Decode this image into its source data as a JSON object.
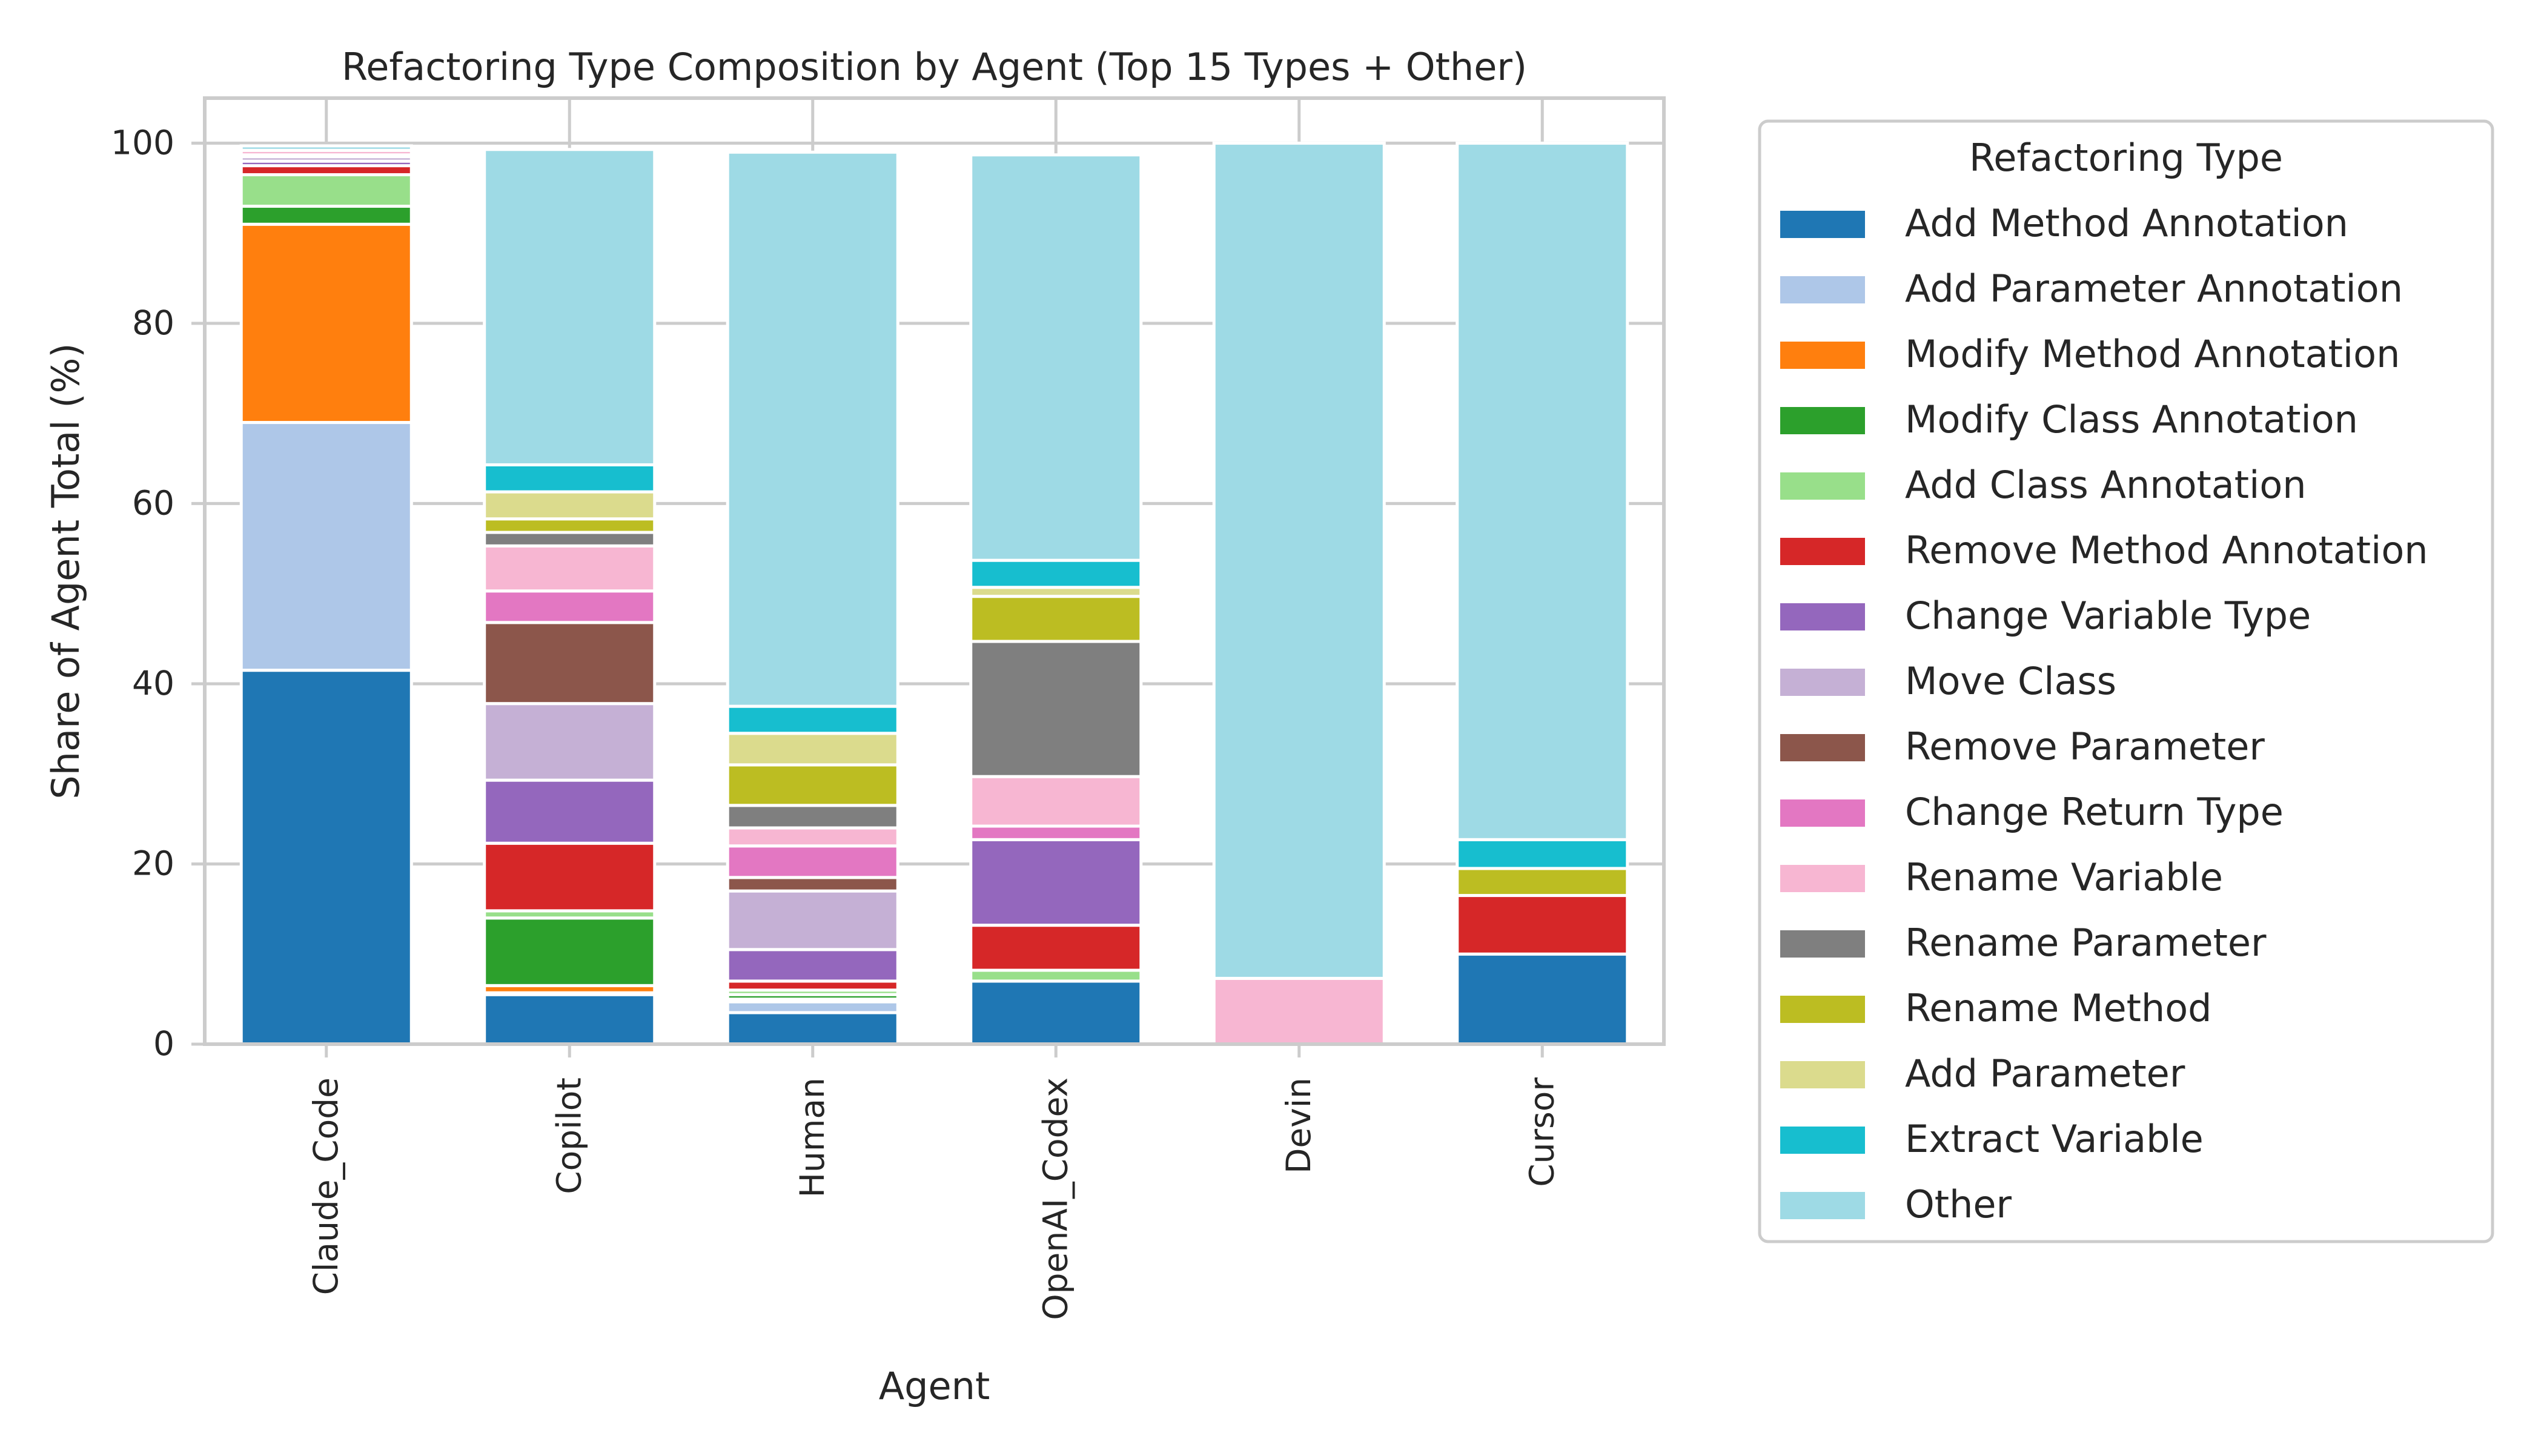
{
  "chart_data": {
    "type": "bar",
    "stacked": true,
    "title": "Refactoring Type Composition by Agent (Top 15 Types + Other)",
    "xlabel": "Agent",
    "ylabel": "Share of Agent Total (%)",
    "ylim": [
      0,
      105
    ],
    "yticks": [
      0,
      20,
      40,
      60,
      80,
      100
    ],
    "grid": true,
    "legend_title": "Refactoring Type",
    "legend_position": "right, outside",
    "categories": [
      "Claude_Code",
      "Copilot",
      "Human",
      "OpenAI_Codex",
      "Devin",
      "Cursor"
    ],
    "series": [
      {
        "name": "Add Method Annotation",
        "color": "#1f77b4",
        "values": [
          41.5,
          5.5,
          3.5,
          7.0,
          0,
          10.0
        ]
      },
      {
        "name": "Add Parameter Annotation",
        "color": "#aec7e8",
        "values": [
          27.5,
          0.2,
          1.2,
          0,
          0,
          0
        ]
      },
      {
        "name": "Modify Method Annotation",
        "color": "#ff7f0e",
        "values": [
          22.0,
          0.8,
          0.3,
          0,
          0,
          0
        ]
      },
      {
        "name": "Modify Class Annotation",
        "color": "#2ca02c",
        "values": [
          2.0,
          7.5,
          0.5,
          0,
          0,
          0
        ]
      },
      {
        "name": "Add Class Annotation",
        "color": "#98df8a",
        "values": [
          3.5,
          0.8,
          0.5,
          1.2,
          0,
          0
        ]
      },
      {
        "name": "Remove Method Annotation",
        "color": "#d62728",
        "values": [
          1.0,
          7.5,
          1.0,
          5.0,
          0,
          6.5
        ]
      },
      {
        "name": "Change Variable Type",
        "color": "#9467bd",
        "values": [
          0.5,
          7.0,
          3.5,
          9.5,
          0,
          0
        ]
      },
      {
        "name": "Move Class",
        "color": "#c5b0d5",
        "values": [
          0.5,
          8.5,
          6.5,
          0,
          0,
          0
        ]
      },
      {
        "name": "Remove Parameter",
        "color": "#8c564b",
        "values": [
          0,
          9.0,
          1.5,
          0,
          0,
          0
        ]
      },
      {
        "name": "Change Return Type",
        "color": "#e377c2",
        "values": [
          0.2,
          3.5,
          3.5,
          1.5,
          0,
          0
        ]
      },
      {
        "name": "Rename Variable",
        "color": "#f7b6d2",
        "values": [
          0.5,
          5.0,
          2.0,
          5.5,
          7.3,
          0
        ]
      },
      {
        "name": "Rename Parameter",
        "color": "#7f7f7f",
        "values": [
          0,
          1.5,
          2.5,
          15.0,
          0,
          0
        ]
      },
      {
        "name": "Rename Method",
        "color": "#bcbd22",
        "values": [
          0,
          1.5,
          4.5,
          5.0,
          0,
          3.0
        ]
      },
      {
        "name": "Add Parameter",
        "color": "#dbdb8d",
        "values": [
          0,
          3.0,
          3.5,
          1.0,
          0,
          0
        ]
      },
      {
        "name": "Extract Variable",
        "color": "#17becf",
        "values": [
          0,
          3.0,
          3.0,
          3.0,
          0,
          3.2
        ]
      },
      {
        "name": "Other",
        "color": "#9edae5",
        "values": [
          0.5,
          35.0,
          61.5,
          45.0,
          92.7,
          77.3
        ]
      }
    ]
  }
}
